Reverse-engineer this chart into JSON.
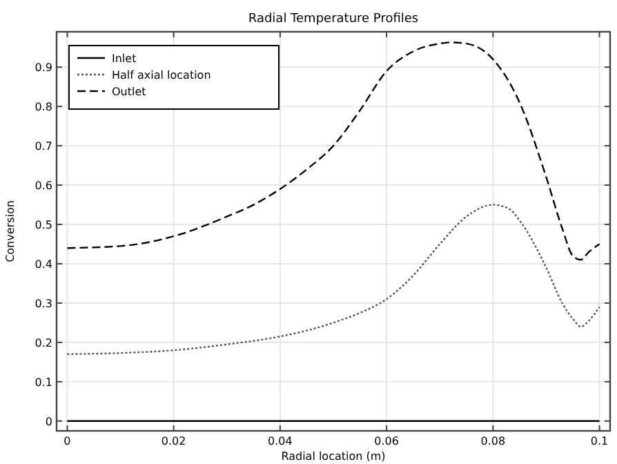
{
  "chart_data": {
    "type": "line",
    "title": "Radial Temperature Profiles",
    "xlabel": "Radial location (m)",
    "ylabel": "Conversion",
    "xlim": [
      -0.002,
      0.102
    ],
    "ylim": [
      -0.025,
      0.99
    ],
    "xticks": [
      0,
      0.02,
      0.04,
      0.06,
      0.08,
      0.1
    ],
    "yticks": [
      0,
      0.1,
      0.2,
      0.3,
      0.4,
      0.5,
      0.6,
      0.7,
      0.8,
      0.9
    ],
    "grid": true,
    "legend": "top left",
    "series": [
      {
        "name": "Inlet",
        "color": "#000000",
        "line_style": "solid",
        "x": [
          0,
          0.1
        ],
        "values": [
          0,
          0
        ]
      },
      {
        "name": "Half axial location",
        "color": "#555555",
        "line_style": "dotted",
        "x": [
          0,
          0.01,
          0.02,
          0.03,
          0.04,
          0.045,
          0.05,
          0.055,
          0.06,
          0.065,
          0.07,
          0.075,
          0.08,
          0.083,
          0.085,
          0.09,
          0.093,
          0.095,
          0.0965,
          0.098,
          0.1
        ],
        "values": [
          0.17,
          0.173,
          0.18,
          0.195,
          0.215,
          0.23,
          0.25,
          0.275,
          0.31,
          0.37,
          0.45,
          0.52,
          0.55,
          0.54,
          0.51,
          0.39,
          0.3,
          0.26,
          0.24,
          0.255,
          0.29
        ]
      },
      {
        "name": "Outlet",
        "color": "#000000",
        "line_style": "dashed",
        "x": [
          0,
          0.01,
          0.02,
          0.03,
          0.035,
          0.04,
          0.045,
          0.05,
          0.055,
          0.06,
          0.065,
          0.07,
          0.072,
          0.075,
          0.08,
          0.085,
          0.09,
          0.093,
          0.095,
          0.0965,
          0.098,
          0.1
        ],
        "values": [
          0.44,
          0.445,
          0.47,
          0.52,
          0.55,
          0.59,
          0.64,
          0.7,
          0.79,
          0.89,
          0.94,
          0.96,
          0.963,
          0.96,
          0.92,
          0.81,
          0.62,
          0.49,
          0.42,
          0.41,
          0.43,
          0.45
        ]
      }
    ]
  }
}
